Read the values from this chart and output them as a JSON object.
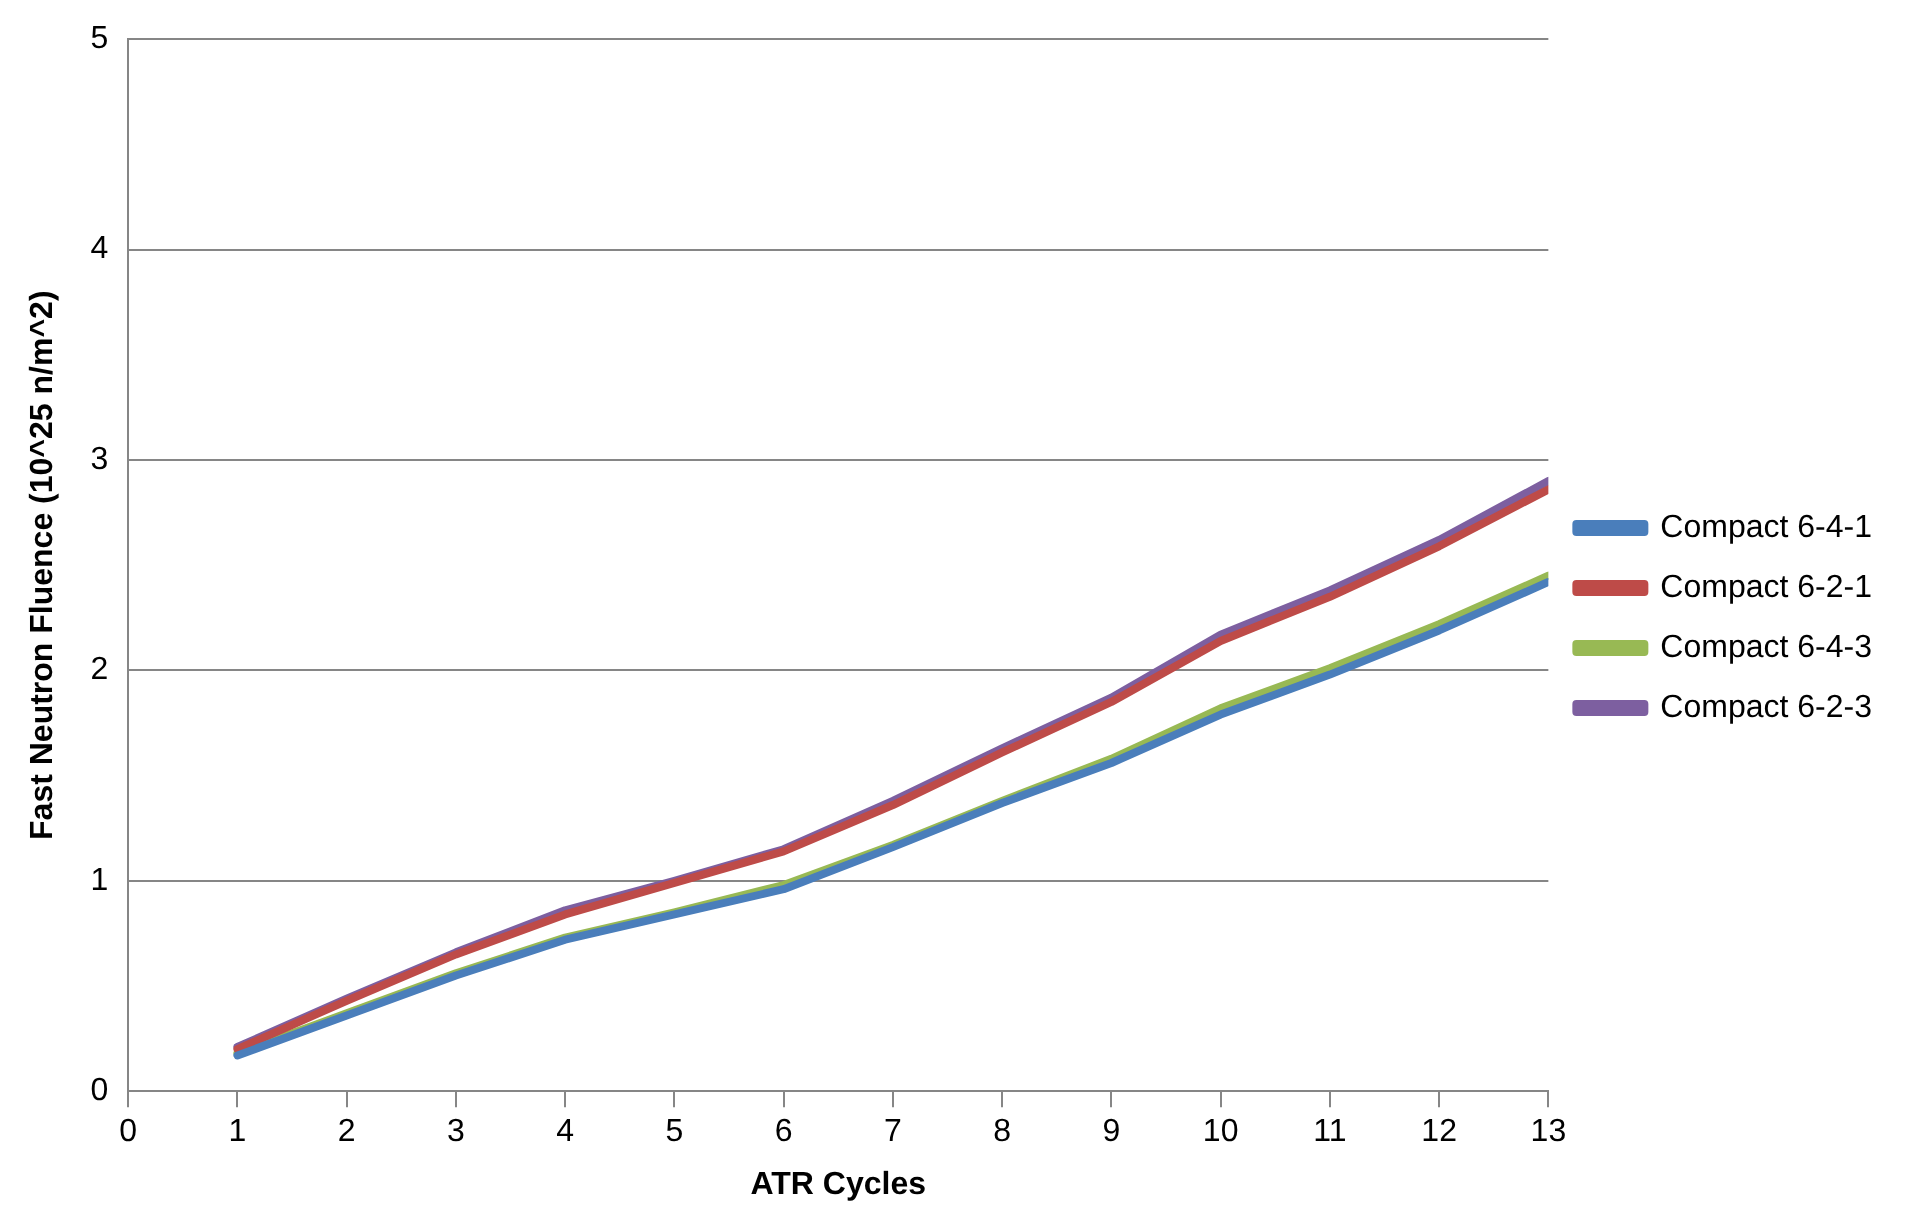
{
  "chart_data": {
    "type": "line",
    "xlabel": "ATR Cycles",
    "ylabel": "Fast Neutron Fluence (10^25 n/m^2)",
    "x": [
      1,
      2,
      3,
      4,
      5,
      6,
      7,
      8,
      9,
      10,
      11,
      12,
      13
    ],
    "series": [
      {
        "name": "Compact 6-4-1",
        "color": "#4a7ebb",
        "values": [
          0.17,
          0.36,
          0.55,
          0.72,
          0.84,
          0.96,
          1.16,
          1.37,
          1.56,
          1.79,
          1.98,
          2.19,
          2.42
        ]
      },
      {
        "name": "Compact 6-2-1",
        "color": "#be4b48",
        "values": [
          0.2,
          0.43,
          0.65,
          0.84,
          0.99,
          1.14,
          1.36,
          1.61,
          1.85,
          2.14,
          2.35,
          2.59,
          2.86
        ]
      },
      {
        "name": "Compact 6-4-3",
        "color": "#98b954",
        "values": [
          0.18,
          0.37,
          0.56,
          0.73,
          0.85,
          0.98,
          1.17,
          1.38,
          1.58,
          1.82,
          2.01,
          2.22,
          2.45
        ]
      },
      {
        "name": "Compact 6-2-3",
        "color": "#7d5fa0",
        "values": [
          0.21,
          0.44,
          0.66,
          0.86,
          1.0,
          1.15,
          1.38,
          1.63,
          1.87,
          2.17,
          2.38,
          2.62,
          2.9
        ]
      }
    ],
    "xlim": [
      0,
      13
    ],
    "xticks": [
      0,
      1,
      2,
      3,
      4,
      5,
      6,
      7,
      8,
      9,
      10,
      11,
      12,
      13
    ],
    "ylim": [
      0,
      5
    ],
    "yticks": [
      0,
      1,
      2,
      3,
      4,
      5
    ],
    "grid": "y",
    "legend": "right",
    "marker": "none",
    "line_style": "solid"
  }
}
